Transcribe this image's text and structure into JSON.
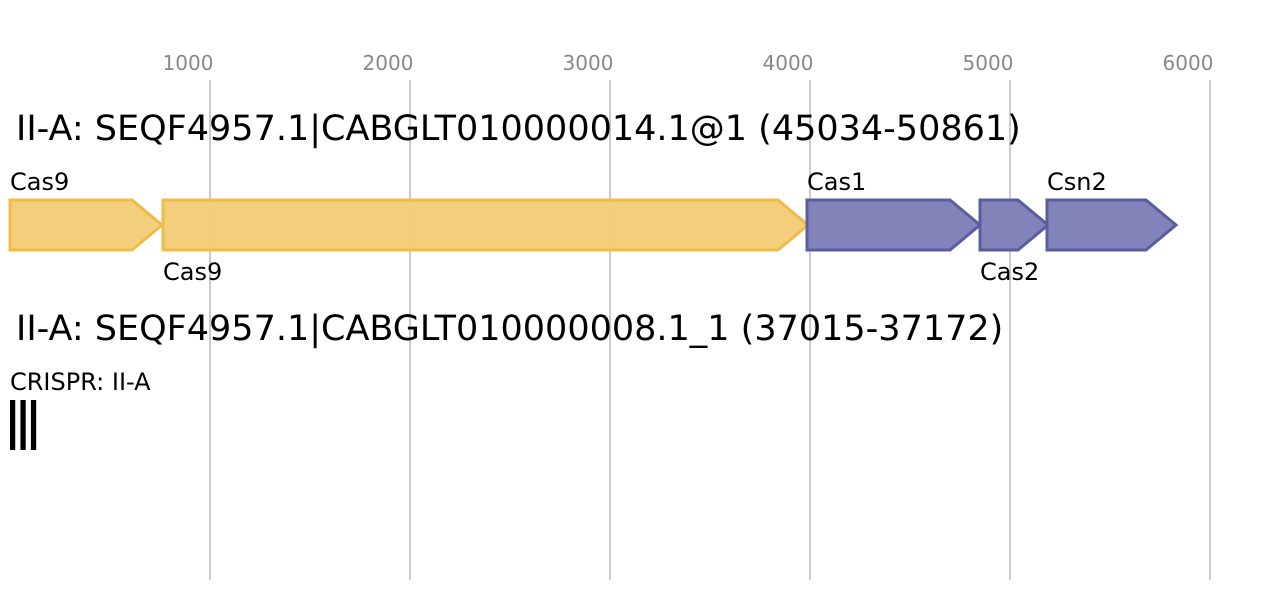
{
  "axis": {
    "xlim": [
      0,
      6250
    ],
    "xticks": [
      1000,
      2000,
      3000,
      4000,
      5000,
      6000
    ]
  },
  "loci": [
    {
      "title": "II-A: SEQF4957.1|CABGLT010000014.1@1 (45034-50861)",
      "genes": [
        {
          "label": "Cas9",
          "start": 0,
          "end": 760,
          "color": "#f2cc74",
          "stroke": "#f0bb48",
          "label_side": "above"
        },
        {
          "label": "Cas9",
          "start": 765,
          "end": 3990,
          "color": "#f2cc74",
          "stroke": "#f0bb48",
          "label_side": "below"
        },
        {
          "label": "Cas1",
          "start": 3985,
          "end": 4850,
          "color": "#7b7db5",
          "stroke": "#5a5da0",
          "label_side": "above"
        },
        {
          "label": "Cas2",
          "start": 4850,
          "end": 5190,
          "color": "#7b7db5",
          "stroke": "#5a5da0",
          "label_side": "below"
        },
        {
          "label": "Csn2",
          "start": 5185,
          "end": 5830,
          "color": "#7b7db5",
          "stroke": "#5a5da0",
          "label_side": "above"
        }
      ]
    },
    {
      "title": "II-A: SEQF4957.1|CABGLT010000008.1_1 (37015-37172)",
      "crispr": {
        "label": "CRISPR: II-A",
        "start": 0,
        "end": 157
      }
    }
  ]
}
